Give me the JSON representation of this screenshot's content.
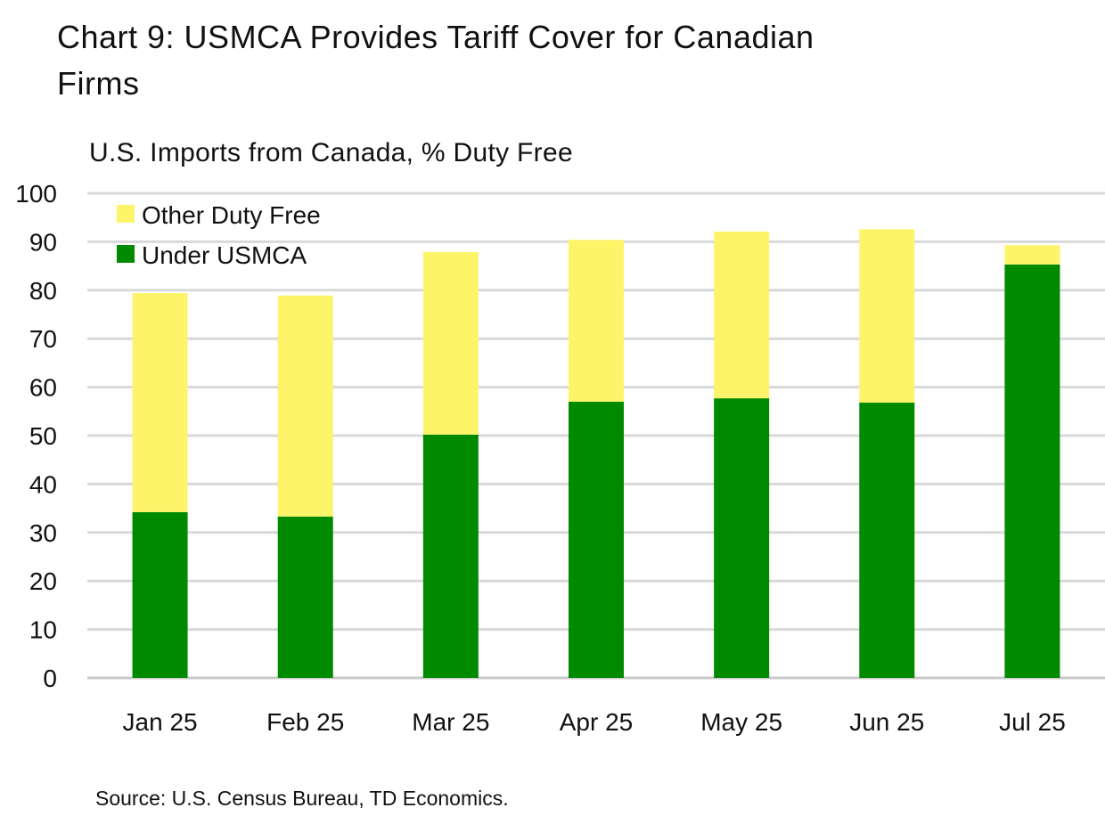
{
  "title": "Chart 9: USMCA Provides Tariff Cover for Canadian Firms",
  "subtitle": "U.S. Imports from Canada, % Duty Free",
  "source": "Source: U.S. Census Bureau, TD Economics.",
  "chart_data": {
    "type": "bar",
    "stacked": true,
    "categories": [
      "Jan 25",
      "Feb 25",
      "Mar 25",
      "Apr 25",
      "May 25",
      "Jun 25",
      "Jul 25"
    ],
    "series": [
      {
        "name": "Under USMCA",
        "color": "#008a00",
        "values": [
          34.2,
          33.3,
          50.2,
          57.0,
          57.7,
          56.8,
          85.3
        ]
      },
      {
        "name": "Other Duty Free",
        "color": "#fef46a",
        "values": [
          45.2,
          45.6,
          37.7,
          33.4,
          34.4,
          35.8,
          4.0
        ]
      }
    ],
    "ylim": [
      0,
      100
    ],
    "yticks": [
      0,
      10,
      20,
      30,
      40,
      50,
      60,
      70,
      80,
      90,
      100
    ],
    "grid": true,
    "legend": "top-left"
  }
}
